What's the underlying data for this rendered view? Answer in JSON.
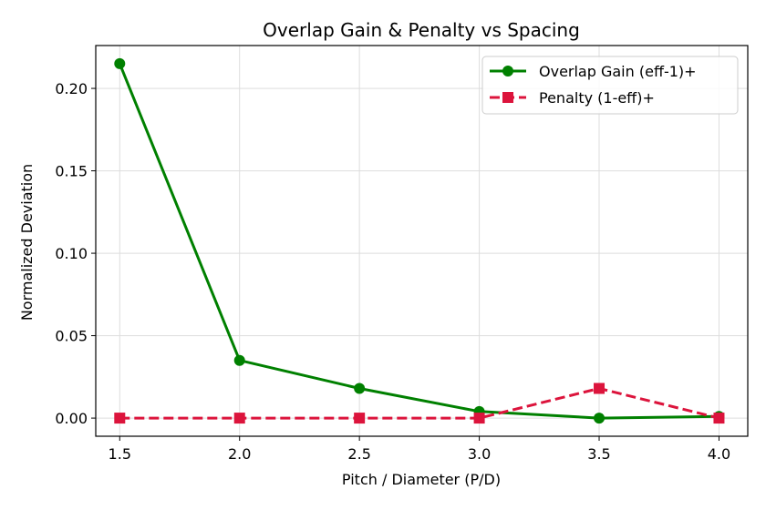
{
  "chart_data": {
    "type": "line",
    "title": "Overlap Gain & Penalty vs Spacing",
    "xlabel": "Pitch / Diameter (P/D)",
    "ylabel": "Normalized Deviation",
    "x": [
      1.5,
      2.0,
      2.5,
      3.0,
      3.5,
      4.0
    ],
    "x_tick_labels": [
      "1.5",
      "2.0",
      "2.5",
      "3.0",
      "3.5",
      "4.0"
    ],
    "y_ticks": [
      0.0,
      0.05,
      0.1,
      0.15,
      0.2
    ],
    "y_tick_labels": [
      "0.00",
      "0.05",
      "0.10",
      "0.15",
      "0.20"
    ],
    "xlim": [
      1.4,
      4.12
    ],
    "ylim": [
      -0.011,
      0.226
    ],
    "grid": true,
    "legend_position": "top-right",
    "series": [
      {
        "name": "Overlap Gain (eff-1)+",
        "values": [
          0.215,
          0.035,
          0.018,
          0.004,
          0.0,
          0.001
        ],
        "color": "#008000",
        "marker": "circle",
        "line_style": "solid"
      },
      {
        "name": "Penalty (1-eff)+",
        "values": [
          0.0,
          0.0,
          0.0,
          0.0,
          0.018,
          0.0
        ],
        "color": "#dc143c",
        "marker": "square",
        "line_style": "dashed"
      }
    ]
  }
}
